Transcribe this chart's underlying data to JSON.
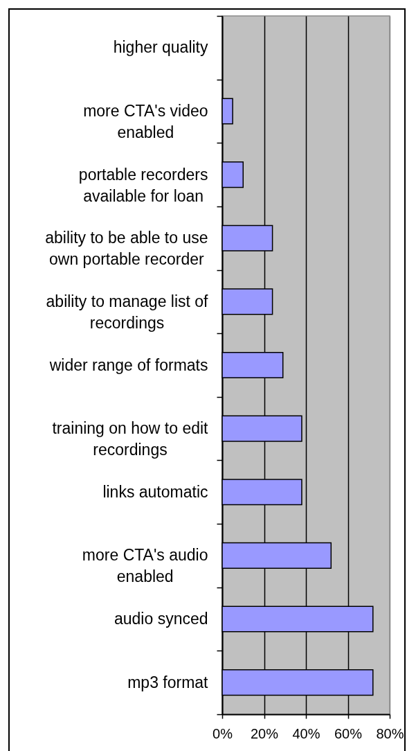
{
  "chart_data": {
    "type": "bar",
    "orientation": "horizontal",
    "categories": [
      "higher quality",
      "more CTA's video enabled",
      "portable recorders available for loan",
      "ability to be able to use own portable recorder",
      "ability to manage list of recordings",
      "wider range of formats",
      "training on how to edit recordings",
      "links automatic",
      "more CTA's audio enabled",
      "audio synced",
      "mp3 format"
    ],
    "values": [
      0,
      5,
      10,
      24,
      24,
      29,
      38,
      38,
      52,
      72,
      72
    ],
    "color": "#9999ff",
    "xlim": [
      0,
      80
    ],
    "xticks": [
      {
        "value": 0,
        "label": "0%"
      },
      {
        "value": 20,
        "label": "20%"
      },
      {
        "value": 40,
        "label": "40%"
      },
      {
        "value": 60,
        "label": "60%"
      },
      {
        "value": 80,
        "label": "80%"
      }
    ],
    "grid": "x"
  }
}
